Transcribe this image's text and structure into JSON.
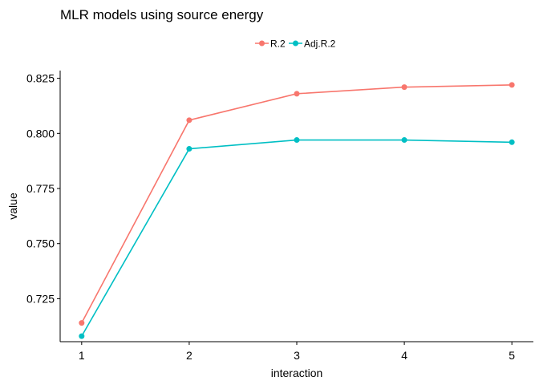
{
  "chart_data": {
    "type": "line",
    "title": "MLR models using source energy",
    "xlabel": "interaction",
    "ylabel": "value",
    "x": [
      1,
      2,
      3,
      4,
      5
    ],
    "x_ticks": [
      "1",
      "2",
      "3",
      "4",
      "5"
    ],
    "y_ticks": [
      "0.725",
      "0.750",
      "0.775",
      "0.800",
      "0.825"
    ],
    "ylim": [
      0.7055,
      0.8285
    ],
    "xlim": [
      0.8,
      5.2
    ],
    "legend_position": "top",
    "grid": false,
    "series": [
      {
        "name": "R.2",
        "color": "#F8766D",
        "values": [
          0.714,
          0.806,
          0.818,
          0.821,
          0.822
        ]
      },
      {
        "name": "Adj.R.2",
        "color": "#00BFC4",
        "values": [
          0.708,
          0.793,
          0.797,
          0.797,
          0.796
        ]
      }
    ]
  }
}
